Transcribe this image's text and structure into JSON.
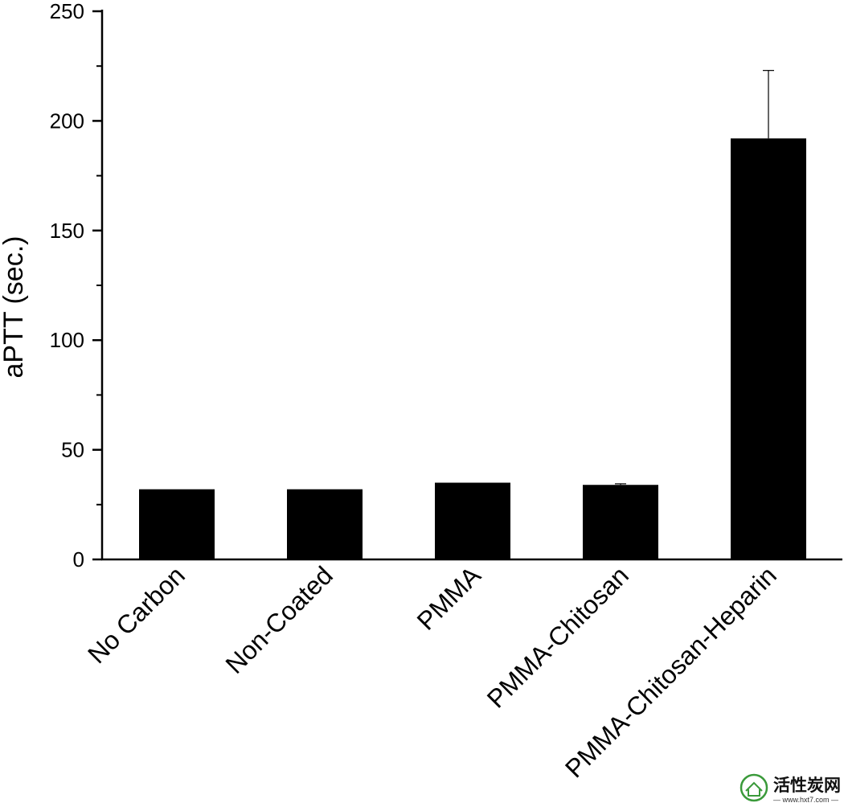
{
  "chart_data": {
    "type": "bar",
    "categories": [
      "No Carbon",
      "Non-Coated",
      "PMMA",
      "PMMA-Chitosan",
      "PMMA-Chitosan-Heparin"
    ],
    "values": [
      32,
      32,
      35,
      34,
      192
    ],
    "error_upper": [
      0,
      0,
      0,
      0.5,
      31
    ],
    "ylabel": "aPTT (sec.)",
    "xlabel": "",
    "ylim": [
      0,
      250
    ],
    "yticks": [
      0,
      50,
      100,
      150,
      200,
      250
    ],
    "bar_color": "#000000",
    "grid": false
  },
  "watermark": {
    "title": "活性炭网",
    "url": "— www.hxt7.com —"
  }
}
